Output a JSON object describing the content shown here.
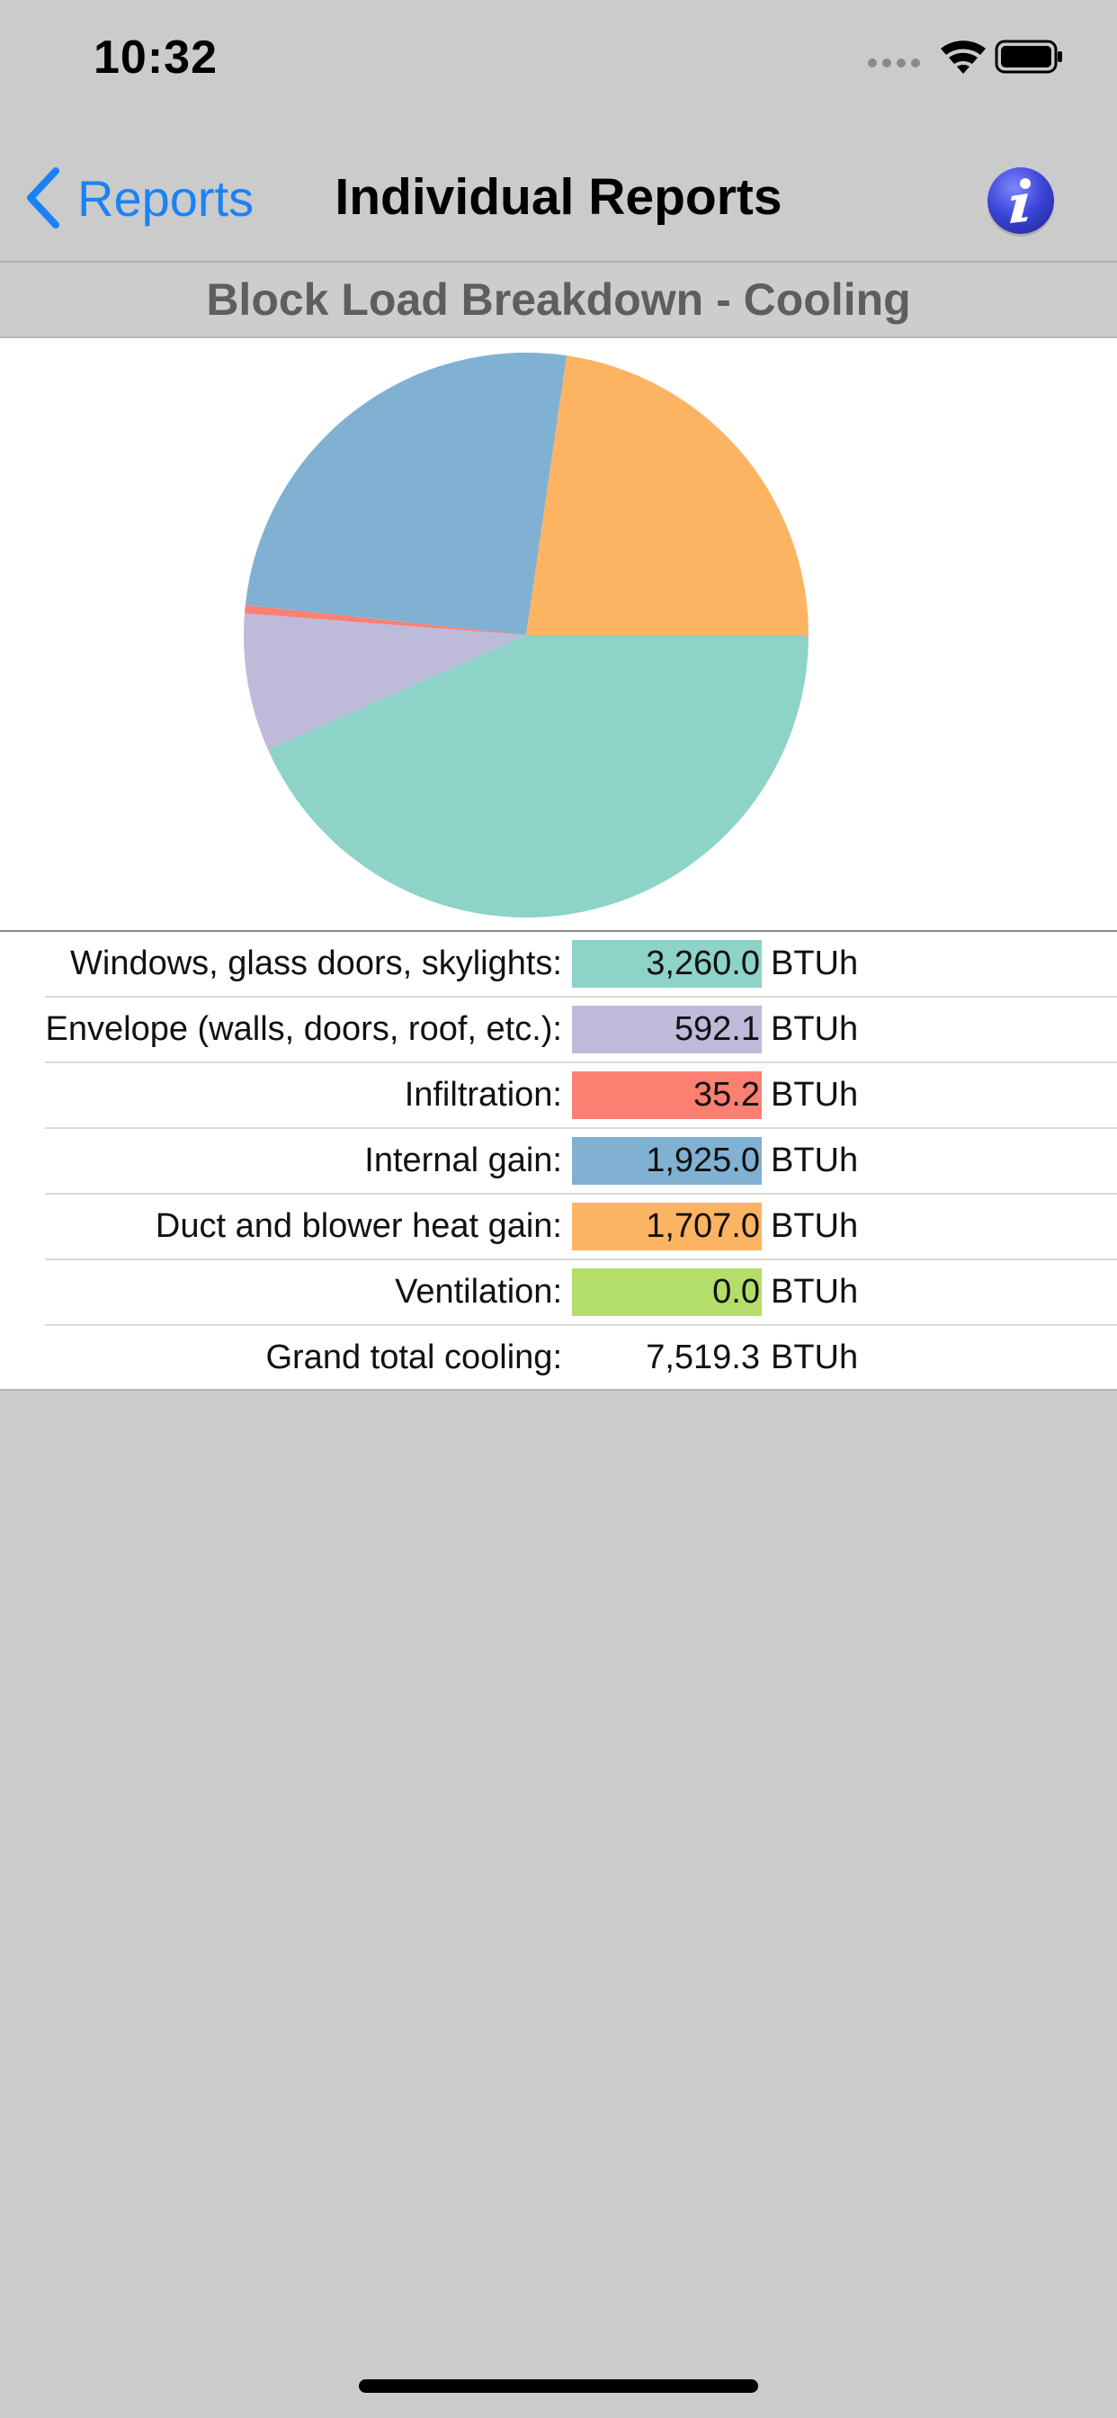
{
  "status_bar": {
    "time": "10:32"
  },
  "nav": {
    "back_label": "Reports",
    "title": "Individual Reports",
    "info_icon": "info-icon"
  },
  "section": {
    "title": "Block Load Breakdown - Cooling"
  },
  "chart_data": {
    "type": "pie",
    "unit": "BTUh",
    "slices": [
      {
        "label": "Windows, glass doors, skylights:",
        "value": 3260.0,
        "color": "#8dd3c7"
      },
      {
        "label": "Envelope (walls, doors, roof, etc.):",
        "value": 592.1,
        "color": "#bebada"
      },
      {
        "label": "Infiltration:",
        "value": 35.2,
        "color": "#fb8072"
      },
      {
        "label": "Internal gain:",
        "value": 1925.0,
        "color": "#80b1d3"
      },
      {
        "label": "Duct and blower heat gain:",
        "value": 1707.0,
        "color": "#fdb462"
      },
      {
        "label": "Ventilation:",
        "value": 0.0,
        "color": "#b3de69"
      }
    ],
    "total": 7519.3
  },
  "table": {
    "rows": [
      {
        "label": "Windows, glass doors, skylights:",
        "value": "3,260.0",
        "unit": "BTUh",
        "color": "#8dd3c7"
      },
      {
        "label": "Envelope (walls, doors, roof, etc.):",
        "value": "592.1",
        "unit": "BTUh",
        "color": "#bebada"
      },
      {
        "label": "Infiltration:",
        "value": "35.2",
        "unit": "BTUh",
        "color": "#fb8072"
      },
      {
        "label": "Internal gain:",
        "value": "1,925.0",
        "unit": "BTUh",
        "color": "#80b1d3"
      },
      {
        "label": "Duct and blower heat gain:",
        "value": "1,707.0",
        "unit": "BTUh",
        "color": "#fdb462"
      },
      {
        "label": "Ventilation:",
        "value": "0.0",
        "unit": "BTUh",
        "color": "#b3de69"
      },
      {
        "label": "Grand total cooling:",
        "value": "7,519.3",
        "unit": "BTUh",
        "color": ""
      }
    ]
  }
}
